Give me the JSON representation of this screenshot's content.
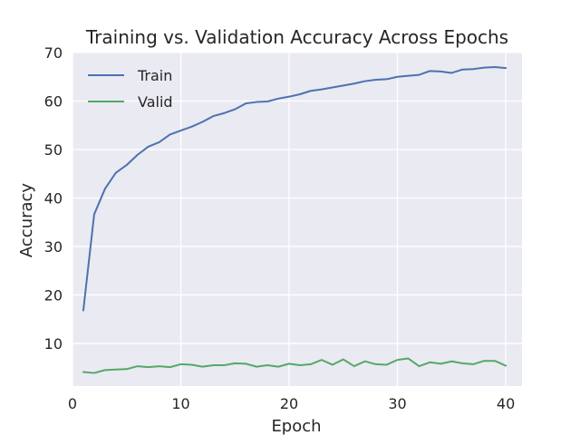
{
  "chart_data": {
    "type": "line",
    "title": "Training vs. Validation Accuracy Across Epochs",
    "xlabel": "Epoch",
    "ylabel": "Accuracy",
    "xlim": [
      0,
      41.5
    ],
    "ylim": [
      1.2,
      70
    ],
    "xticks": [
      0,
      10,
      20,
      30,
      40
    ],
    "yticks": [
      10,
      20,
      30,
      40,
      50,
      60,
      70
    ],
    "grid": true,
    "legend_position": "top-left",
    "background_color": "#eaeaf2",
    "grid_color": "#ffffff",
    "x": [
      1,
      2,
      3,
      4,
      5,
      6,
      7,
      8,
      9,
      10,
      11,
      12,
      13,
      14,
      15,
      16,
      17,
      18,
      19,
      20,
      21,
      22,
      23,
      24,
      25,
      26,
      27,
      28,
      29,
      30,
      31,
      32,
      33,
      34,
      35,
      36,
      37,
      38,
      39,
      40
    ],
    "series": [
      {
        "name": "Train",
        "color": "#4c72b0",
        "values": [
          16.8,
          36.6,
          41.9,
          45.2,
          46.8,
          48.9,
          50.6,
          51.5,
          53.1,
          53.9,
          54.7,
          55.7,
          56.9,
          57.5,
          58.3,
          59.5,
          59.8,
          59.9,
          60.5,
          60.9,
          61.4,
          62.1,
          62.4,
          62.8,
          63.2,
          63.6,
          64.1,
          64.4,
          64.5,
          65.0,
          65.2,
          65.4,
          66.2,
          66.1,
          65.8,
          66.5,
          66.6,
          66.9,
          67.0,
          66.8
        ]
      },
      {
        "name": "Valid",
        "color": "#55a868",
        "values": [
          4.1,
          3.9,
          4.5,
          4.6,
          4.7,
          5.3,
          5.1,
          5.3,
          5.1,
          5.7,
          5.6,
          5.2,
          5.5,
          5.5,
          5.9,
          5.8,
          5.2,
          5.5,
          5.2,
          5.8,
          5.5,
          5.7,
          6.6,
          5.6,
          6.7,
          5.3,
          6.3,
          5.7,
          5.6,
          6.6,
          6.9,
          5.3,
          6.1,
          5.8,
          6.3,
          5.9,
          5.7,
          6.4,
          6.4,
          5.4
        ]
      }
    ]
  }
}
